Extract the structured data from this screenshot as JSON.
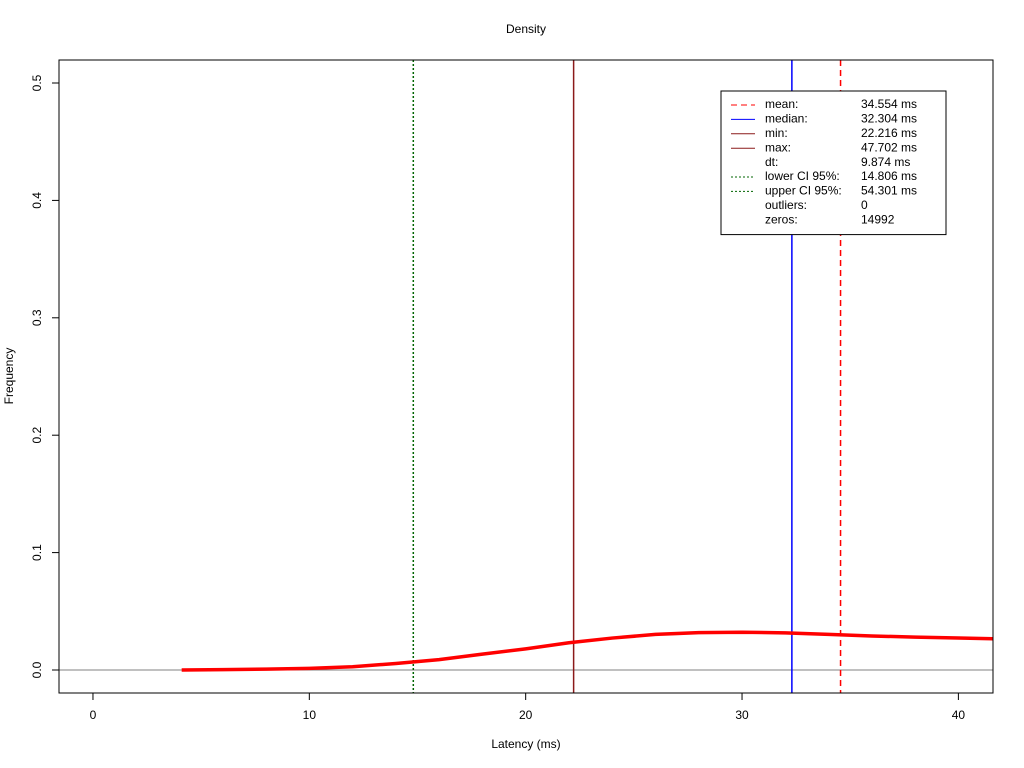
{
  "chart_data": {
    "type": "density",
    "title": "Density",
    "x_label": "Latency (ms)",
    "y_label": "Frequency",
    "x": [
      4.1,
      6,
      8,
      10,
      12,
      14,
      16,
      18,
      20,
      22,
      24,
      26,
      28,
      30,
      32,
      34,
      36,
      38,
      40,
      41.6
    ],
    "values": [
      0,
      0.0003,
      0.0007,
      0.0014,
      0.0028,
      0.0055,
      0.0088,
      0.0135,
      0.018,
      0.0232,
      0.0272,
      0.0303,
      0.0318,
      0.0322,
      0.0316,
      0.0303,
      0.029,
      0.028,
      0.0272,
      0.0266
    ],
    "color": "#ff0000",
    "xlim": [
      -1.57,
      41.6
    ],
    "ylim": [
      -0.0196,
      0.5196
    ],
    "xticks": [
      0,
      10,
      20,
      30,
      40
    ],
    "yticks": [
      {
        "value": 0,
        "label": "0.0"
      },
      0.1,
      0.2,
      0.3,
      0.4,
      0.5
    ],
    "legend_position": "top-right",
    "legend": [
      {
        "name": "mean:",
        "value": 34.554,
        "value_label": "34.554 ms",
        "color": "#ff0000",
        "dash": "dashed"
      },
      {
        "name": "median:",
        "value": 32.304,
        "value_label": "32.304 ms",
        "color": "#0000ff",
        "dash": "solid"
      },
      {
        "name": "min:",
        "value": 22.216,
        "value_label": "22.216 ms",
        "color": "#8b1a1a",
        "dash": "solid"
      },
      {
        "name": "max:",
        "value": 47.702,
        "value_label": "47.702 ms",
        "color": "#8b1a1a",
        "dash": "solid"
      },
      {
        "name": "dt:",
        "value": 9.874,
        "value_label": "9.874 ms"
      },
      {
        "name": "lower CI 95%:",
        "value": 14.806,
        "value_label": "14.806 ms",
        "color": "#006400",
        "dash": "dotted"
      },
      {
        "name": "upper CI 95%:",
        "value": 54.301,
        "value_label": "54.301 ms",
        "color": "#006400",
        "dash": "dotted"
      },
      {
        "name": "outliers:",
        "value": 0
      },
      {
        "name": "zeros:",
        "value": 14992
      }
    ]
  }
}
